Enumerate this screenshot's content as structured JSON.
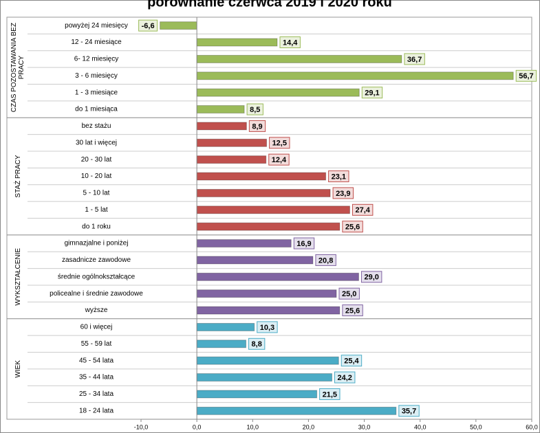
{
  "chart_data": {
    "type": "bar",
    "title": "porównanie czerwca 2019 i 2020 roku",
    "xlim": [
      -10,
      60
    ],
    "xticks": [
      {
        "value": -10,
        "label": "-10,0"
      },
      {
        "value": 0,
        "label": "0,0"
      },
      {
        "value": 10,
        "label": "10,0"
      },
      {
        "value": 20,
        "label": "20,0"
      },
      {
        "value": 30,
        "label": "30,0"
      },
      {
        "value": 40,
        "label": "40,0"
      },
      {
        "value": 50,
        "label": "50,0"
      },
      {
        "value": 60,
        "label": "60,0"
      }
    ],
    "groups": [
      {
        "name": "CZAS POZOSTAWANIA BEZ PRACY",
        "color": "#9bbb59",
        "label_color": "#ebf1de",
        "categories": [
          "powyżej 24 miesięcy",
          "12 - 24 miesiące",
          "6- 12 miesięcy",
          "3 - 6 miesięcy",
          "1 - 3 miesiące",
          "do 1 miesiąca"
        ],
        "values": [
          -6.6,
          14.4,
          36.7,
          56.7,
          29.1,
          8.5
        ],
        "value_labels": [
          "-6,6",
          "14,4",
          "36,7",
          "56,7",
          "29,1",
          "8,5"
        ]
      },
      {
        "name": "STAŻ PRACY",
        "color": "#c0504d",
        "label_color": "#f2dcdb",
        "categories": [
          "bez stażu",
          "30 lat i więcej",
          "20 - 30 lat",
          "10 - 20 lat",
          "5 - 10 lat",
          "1 - 5 lat",
          "do 1 roku"
        ],
        "values": [
          8.9,
          12.5,
          12.4,
          23.1,
          23.9,
          27.4,
          25.6
        ],
        "value_labels": [
          "8,9",
          "12,5",
          "12,4",
          "23,1",
          "23,9",
          "27,4",
          "25,6"
        ]
      },
      {
        "name": "WYKSZTAŁCENIE",
        "color": "#8064a2",
        "label_color": "#e4dfec",
        "categories": [
          "gimnazjalne i poniżej",
          "zasadnicze zawodowe",
          "średnie ogólnokształcące",
          "policealne i średnie zawodowe",
          "wyższe"
        ],
        "values": [
          16.9,
          20.8,
          29.0,
          25.0,
          25.6
        ],
        "value_labels": [
          "16,9",
          "20,8",
          "29,0",
          "25,0",
          "25,6"
        ]
      },
      {
        "name": "WIEK",
        "color": "#4bacc6",
        "label_color": "#dbeef4",
        "categories": [
          "60 i więcej",
          "55 - 59 lat",
          "45 - 54 lata",
          "35 - 44 lata",
          "25 - 34 lata",
          "18 - 24 lata"
        ],
        "values": [
          10.3,
          8.8,
          25.4,
          24.2,
          21.5,
          35.7
        ],
        "value_labels": [
          "10,3",
          "8,8",
          "25,4",
          "24,2",
          "21,5",
          "35,7"
        ]
      }
    ]
  }
}
